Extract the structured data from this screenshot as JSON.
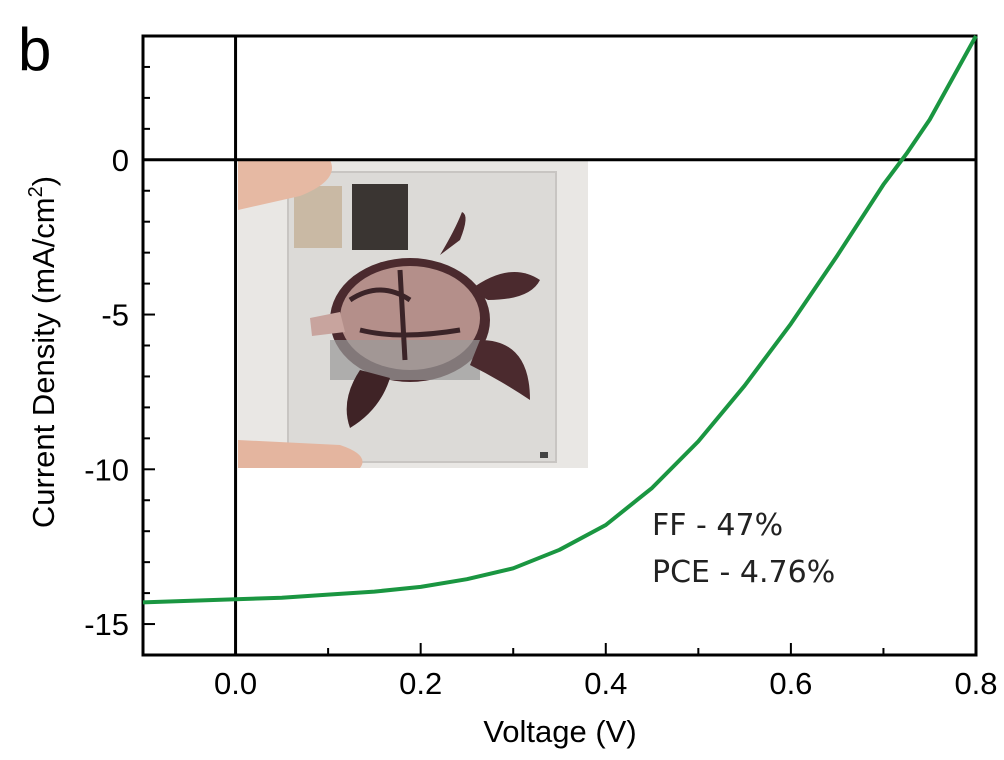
{
  "panel_label": "b",
  "inset_photo": {
    "description_icon": "turtle-solar-cell-photo-icon"
  },
  "annotations": {
    "ff": "FF - 47%",
    "pce": "PCE - 4.76%"
  },
  "chart_data": {
    "type": "line",
    "title": "",
    "xlabel": "Voltage (V)",
    "ylabel_main": "Current Density (mA/cm",
    "ylabel_sup": "2",
    "ylabel_end": ")",
    "xlim": [
      -0.1,
      0.8
    ],
    "ylim": [
      -16,
      4
    ],
    "x_ticks": [
      0.0,
      0.2,
      0.4,
      0.6,
      0.8
    ],
    "x_tick_labels": [
      "0.0",
      "0.2",
      "0.4",
      "0.6",
      "0.8"
    ],
    "y_ticks": [
      0,
      -5,
      -10,
      -15
    ],
    "y_tick_labels": [
      "0",
      "-5",
      "-10",
      "-15"
    ],
    "grid": false,
    "reference_lines": {
      "x": 0,
      "y": 0
    },
    "series": [
      {
        "color": "#1a9641",
        "x": [
          -0.1,
          0.0,
          0.05,
          0.1,
          0.15,
          0.2,
          0.25,
          0.3,
          0.35,
          0.4,
          0.45,
          0.5,
          0.55,
          0.6,
          0.65,
          0.7,
          0.725,
          0.75,
          0.8
        ],
        "y": [
          -14.3,
          -14.2,
          -14.15,
          -14.05,
          -13.95,
          -13.8,
          -13.55,
          -13.2,
          -12.6,
          -11.8,
          -10.6,
          -9.1,
          -7.3,
          -5.3,
          -3.1,
          -0.8,
          0.2,
          1.3,
          4.0
        ]
      }
    ]
  }
}
